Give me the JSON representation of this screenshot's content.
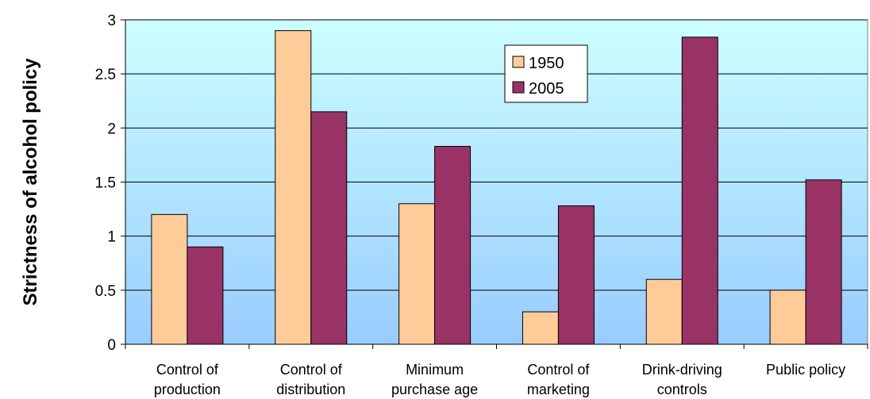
{
  "chart_data": {
    "type": "bar",
    "title": "",
    "xlabel": "",
    "ylabel": "Strictness of alcohol policy",
    "ylim": [
      0,
      3
    ],
    "yticks": [
      "0",
      "0.5",
      "1",
      "1.5",
      "2",
      "2.5",
      "3"
    ],
    "categories": [
      [
        "Control of",
        "production"
      ],
      [
        "Control of",
        "distribution"
      ],
      [
        "Minimum",
        "purchase age"
      ],
      [
        "Control of",
        "marketing"
      ],
      [
        "Drink-driving",
        "controls"
      ],
      [
        "Public policy"
      ]
    ],
    "series": [
      {
        "name": "1950",
        "color": "#FFCC99",
        "values": [
          1.2,
          2.9,
          1.3,
          0.3,
          0.6,
          0.5
        ]
      },
      {
        "name": "2005",
        "color": "#993366",
        "values": [
          0.9,
          2.15,
          1.83,
          1.28,
          2.84,
          1.52
        ]
      }
    ],
    "grid": true,
    "legend_position": "top-center",
    "plot_background": "gradient-light-cyan-to-blue"
  }
}
